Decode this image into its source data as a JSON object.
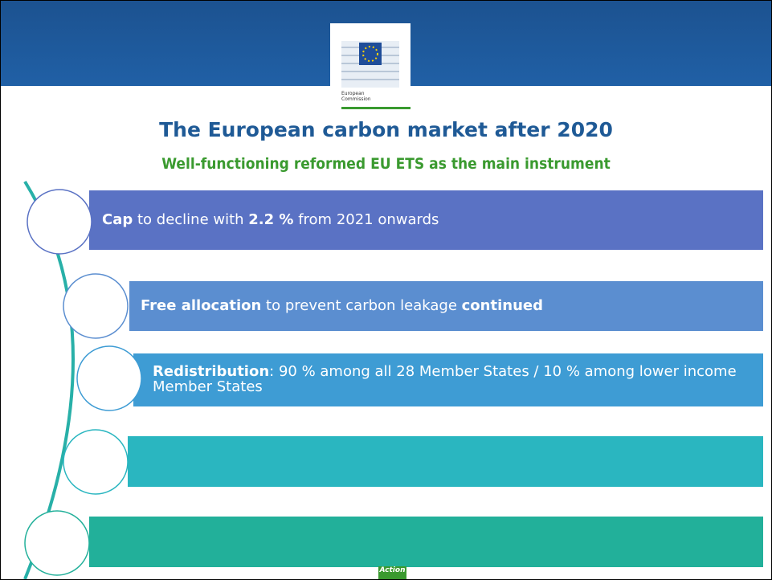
{
  "header": {
    "logo_text": [
      "European",
      "Commission"
    ]
  },
  "title": "The European carbon market after 2020",
  "subtitle": "Well-functioning reformed EU ETS as the main instrument",
  "items": [
    {
      "segments": [
        {
          "text": "Cap",
          "bold": true
        },
        {
          "text": " to decline with ",
          "bold": false
        },
        {
          "text": "2.2 %",
          "bold": true
        },
        {
          "text": " from 2021 onwards",
          "bold": false
        }
      ]
    },
    {
      "segments": [
        {
          "text": "Free allocation",
          "bold": true
        },
        {
          "text": " to prevent carbon leakage ",
          "bold": false
        },
        {
          "text": "continued",
          "bold": true
        }
      ]
    },
    {
      "segments": [
        {
          "text": "Redistribution",
          "bold": true
        },
        {
          "text": ": 90 % among all 28 Member States / 10 % among lower income Member States",
          "bold": false
        }
      ]
    },
    {
      "segments": []
    },
    {
      "segments": []
    }
  ],
  "footer": {
    "tag": "Action"
  }
}
